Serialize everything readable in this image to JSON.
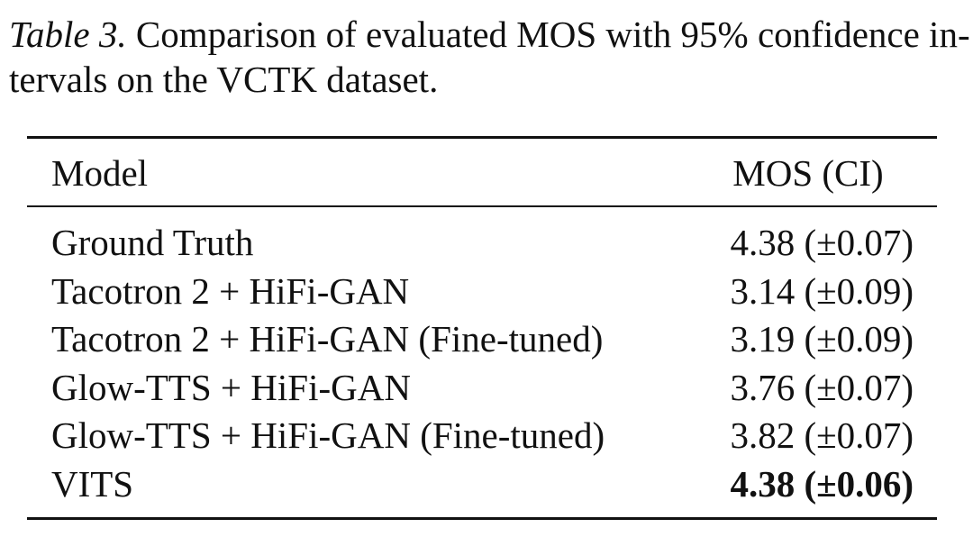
{
  "caption": {
    "label": "Table 3.",
    "lines": [
      "Comparison of evaluated MOS with 95% confidence in-",
      "tervals on the VCTK dataset."
    ]
  },
  "table": {
    "header": [
      "Model",
      "MOS (CI)"
    ],
    "rows": [
      {
        "model": "Ground Truth",
        "mos": "4.38 (±0.07)"
      },
      {
        "model": "Tacotron 2 + HiFi-GAN",
        "mos": "3.14 (±0.09)"
      },
      {
        "model": "Tacotron 2 + HiFi-GAN (Fine-tuned)",
        "mos": "3.19 (±0.09)"
      },
      {
        "model": "Glow-TTS + HiFi-GAN",
        "mos": "3.76 (±0.07)"
      },
      {
        "model": "Glow-TTS + HiFi-GAN (Fine-tuned)",
        "mos": "3.82 (±0.07)"
      },
      {
        "model": "VITS",
        "mos": "4.38 (±0.06)",
        "bold": true
      }
    ]
  }
}
